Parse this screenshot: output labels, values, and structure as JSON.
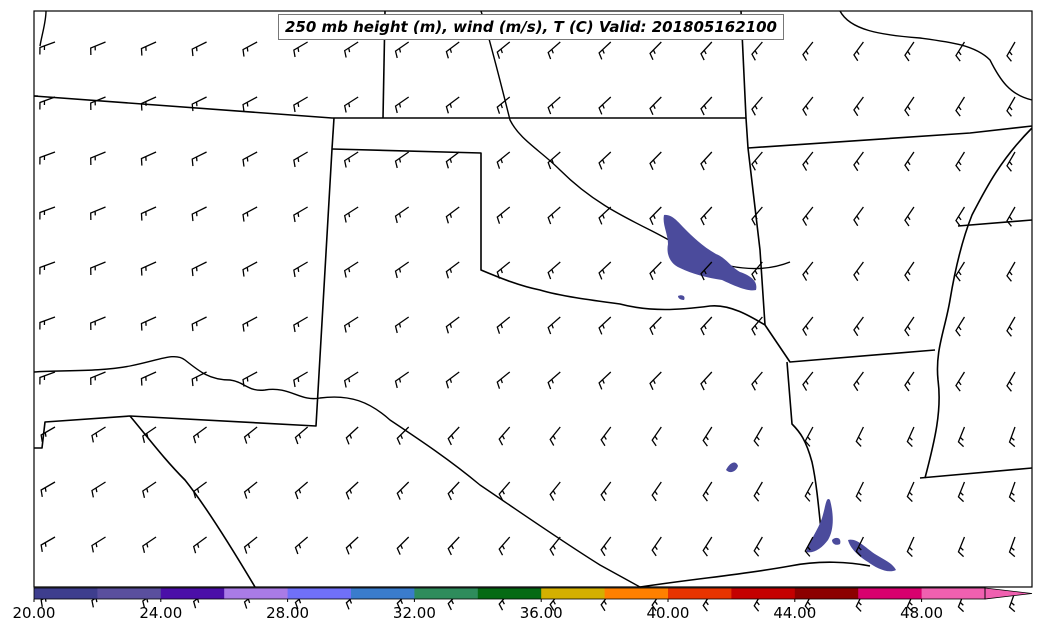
{
  "map": {
    "title": "250 mb height (m), wind (m/s), T (C) Valid: 201805162100",
    "colorbar": {
      "tick_labels": [
        "20.00",
        "24.00",
        "28.00",
        "32.00",
        "36.00",
        "40.00",
        "44.00",
        "48.00"
      ],
      "colors": [
        "#3e3e8e",
        "#5a4f9e",
        "#4b0fa8",
        "#a97be6",
        "#7070f8",
        "#3a7ccc",
        "#2e8c5c",
        "#056a14",
        "#d4b000",
        "#ff8000",
        "#e83400",
        "#c40000",
        "#8c0000",
        "#d8006e",
        "#f060b0"
      ]
    },
    "colors": {
      "boundary": "#000000",
      "shading": "#4b4b9c"
    }
  }
}
